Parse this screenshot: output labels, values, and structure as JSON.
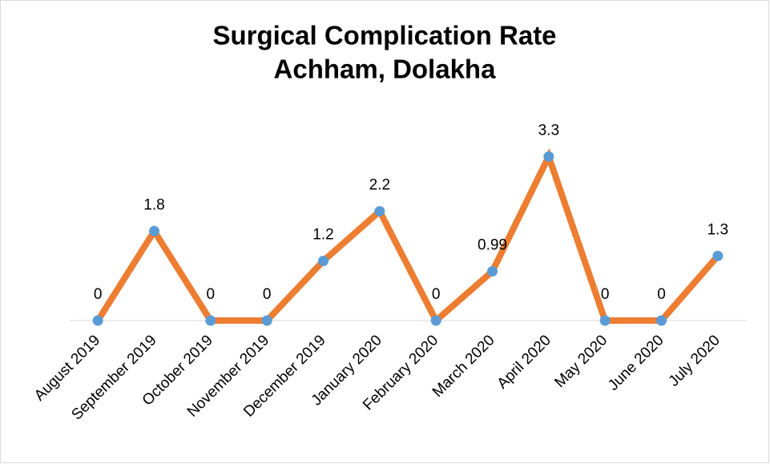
{
  "chart_data": {
    "type": "line",
    "title": [
      "Surgical Complication Rate",
      "Achham, Dolakha"
    ],
    "categories": [
      "August 2019",
      "September 2019",
      "October 2019",
      "November 2019",
      "December 2019",
      "January 2020",
      "February 2020",
      "March 2020",
      "April 2020",
      "May 2020",
      "June 2020",
      "July 2020"
    ],
    "series": [
      {
        "color": "#ed7d31",
        "marker_color": "#5b9bd5",
        "values": [
          0,
          1.8,
          0,
          0,
          1.2,
          2.2,
          0,
          0.99,
          3.3,
          0,
          0,
          1.3
        ]
      }
    ],
    "ylim": [
      0,
      4
    ]
  }
}
